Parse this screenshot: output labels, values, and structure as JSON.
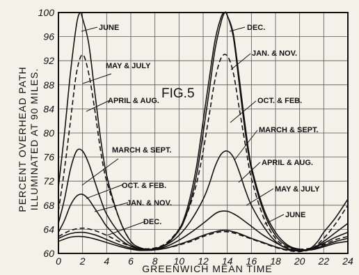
{
  "chart_data": {
    "type": "line",
    "title": "",
    "figure_label": "FIG.5",
    "xlabel": "GREENWICH MEAN TIME",
    "ylabel_lines": [
      "PERCENT OVERHEAD PATH",
      "ILLUMINATED AT 90 MILES."
    ],
    "xlim": [
      0,
      24
    ],
    "ylim": [
      60,
      100
    ],
    "xticks": [
      0,
      2,
      4,
      6,
      8,
      10,
      12,
      14,
      16,
      18,
      20,
      22,
      24
    ],
    "yticks": [
      60,
      64,
      68,
      72,
      76,
      80,
      84,
      88,
      92,
      96,
      100
    ],
    "grid": true,
    "legend": "none",
    "annotations": [
      "JUNE",
      "MAY & JULY",
      "APRIL & AUG.",
      "MARCH & SEPT.",
      "OCT. & FEB.",
      "JAN. & NOV.",
      "DEC.",
      "DEC.",
      "JAN. & NOV.",
      "OCT. & FEB.",
      "MARCH & SEPT.",
      "APRIL & AUG.",
      "MAY & JULY",
      "JUNE"
    ],
    "series": [
      {
        "name": "JUNE",
        "style": "solid",
        "x": [
          0,
          0.5,
          1,
          1.5,
          1.8,
          2,
          2.5,
          3,
          3.5,
          4,
          5,
          6,
          7,
          8,
          9,
          10,
          11,
          12,
          13,
          13.5,
          14,
          14.5,
          15,
          16,
          17,
          18,
          19,
          20,
          20.5,
          21,
          21.5,
          22,
          23,
          24
        ],
        "y": [
          71,
          80,
          90,
          98,
          100,
          99,
          95,
          87,
          79,
          73,
          66,
          62,
          60.8,
          60.6,
          60.9,
          61.5,
          62.2,
          63,
          63.6,
          63.8,
          63.8,
          63.6,
          63.3,
          62.5,
          61.8,
          61.1,
          60.6,
          60.4,
          60.5,
          61,
          62,
          63.5,
          66,
          69
        ]
      },
      {
        "name": "MAY & JULY",
        "style": "dashed",
        "x": [
          0,
          0.5,
          1,
          1.5,
          2,
          2.5,
          3,
          3.5,
          4,
          5,
          6,
          7,
          8,
          9,
          10,
          11,
          12,
          13,
          13.5,
          14,
          14.5,
          15,
          16,
          17,
          18,
          19,
          20,
          21,
          22,
          23,
          24
        ],
        "y": [
          67,
          74,
          82,
          90,
          93,
          90,
          84,
          77,
          72,
          66,
          62,
          60.8,
          60.6,
          60.9,
          61.4,
          62,
          62.8,
          63.4,
          63.6,
          63.6,
          63.4,
          63.1,
          62.4,
          61.7,
          61,
          60.5,
          60.3,
          60.8,
          62.5,
          65,
          68
        ]
      },
      {
        "name": "APRIL & AUG.",
        "style": "solid",
        "x": [
          0,
          0.5,
          1,
          1.5,
          2,
          2.5,
          3,
          3.5,
          4,
          5,
          6,
          7,
          8,
          9,
          10,
          11,
          12,
          13,
          13.5,
          14,
          14.5,
          15,
          16,
          17,
          18,
          19,
          20,
          21,
          22,
          23,
          24
        ],
        "y": [
          65,
          69,
          74,
          77,
          77,
          75,
          72,
          69,
          66.5,
          63.5,
          61.5,
          60.6,
          60.6,
          61.2,
          62.2,
          63.5,
          65,
          66.6,
          67,
          67,
          66.6,
          66,
          64.5,
          63,
          61.8,
          60.8,
          60.5,
          60.8,
          62,
          63.5,
          65
        ]
      },
      {
        "name": "MARCH & SEPT.",
        "style": "solid",
        "x": [
          0,
          0.5,
          1,
          1.5,
          2,
          2.5,
          3,
          3.5,
          4,
          5,
          6,
          7,
          8,
          9,
          10,
          11,
          12,
          12.5,
          13,
          13.5,
          14,
          14.5,
          15,
          15.5,
          16,
          17,
          18,
          19,
          20,
          21,
          22,
          23,
          24
        ],
        "y": [
          63.5,
          65.5,
          68,
          69.5,
          69.8,
          69,
          67.5,
          66,
          64.5,
          62.5,
          61.2,
          60.7,
          60.8,
          61.5,
          63,
          65.5,
          69,
          71.5,
          74.5,
          76.5,
          77,
          76,
          73.5,
          70.5,
          68,
          64.5,
          62,
          60.8,
          60.5,
          60.8,
          61.7,
          62.7,
          63.5
        ]
      },
      {
        "name": "OCT. & FEB.",
        "style": "dashed",
        "x": [
          0,
          1,
          2,
          3,
          4,
          5,
          6,
          7,
          8,
          9,
          10,
          10.5,
          11,
          11.5,
          12,
          12.5,
          13,
          13.5,
          14,
          14.5,
          15,
          15.5,
          16,
          17,
          18,
          19,
          20,
          21,
          22,
          23,
          24
        ],
        "y": [
          62.8,
          63.8,
          64.2,
          63.8,
          63,
          62,
          61.2,
          60.8,
          60.9,
          61.8,
          64,
          65.8,
          68.5,
          72,
          77,
          83,
          89,
          92.5,
          92.8,
          90,
          84,
          78,
          72.5,
          66,
          62.5,
          61,
          60.7,
          60.9,
          61.5,
          62.3,
          62.8
        ]
      },
      {
        "name": "JAN. & NOV.",
        "style": "solid",
        "x": [
          0,
          1,
          2,
          3,
          4,
          5,
          6,
          7,
          8,
          9,
          10,
          10.5,
          11,
          11.5,
          12,
          12.5,
          13,
          13.5,
          13.8,
          14,
          14.5,
          15,
          15.5,
          16,
          17,
          18,
          19,
          20,
          21,
          22,
          23,
          24
        ],
        "y": [
          62.5,
          63.3,
          63.5,
          63.1,
          62.3,
          61.5,
          60.9,
          60.6,
          60.8,
          61.6,
          63.8,
          65.8,
          69,
          73.5,
          80,
          87,
          94,
          98.5,
          100,
          99.5,
          96,
          88,
          80,
          74,
          67,
          63,
          61.2,
          60.6,
          60.7,
          61.3,
          62,
          62.5
        ]
      },
      {
        "name": "DEC.",
        "style": "solid",
        "x": [
          0,
          1,
          2,
          3,
          4,
          5,
          6,
          7,
          8,
          9,
          10,
          10.5,
          11,
          11.5,
          12,
          12.5,
          13,
          13.5,
          13.8,
          14,
          14.5,
          15,
          15.5,
          16,
          17,
          18,
          19,
          20,
          21,
          22,
          23,
          24
        ],
        "y": [
          62,
          62.7,
          62.8,
          62.4,
          61.8,
          61.2,
          60.7,
          60.5,
          60.7,
          61.6,
          64,
          66.3,
          70,
          75,
          82,
          89,
          95.5,
          99.3,
          100,
          99.5,
          96.5,
          89,
          81,
          74.5,
          67.5,
          63.5,
          61.4,
          60.7,
          60.6,
          61.1,
          61.7,
          62
        ]
      }
    ]
  }
}
